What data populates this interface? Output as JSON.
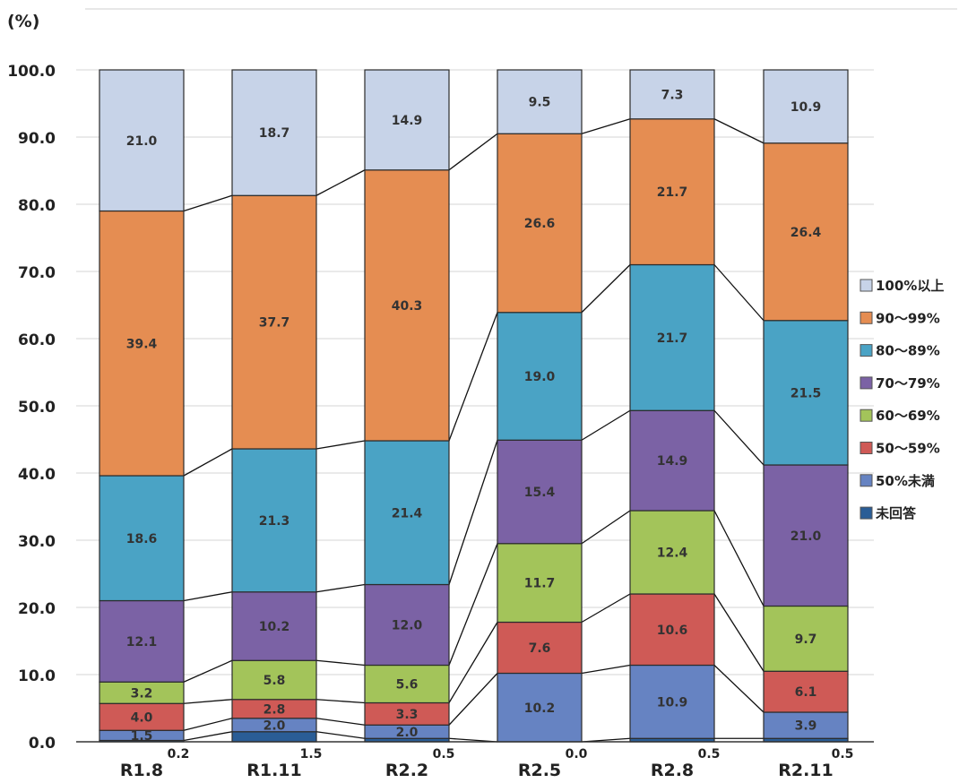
{
  "chart_data": {
    "type": "bar",
    "stacked": true,
    "unit_label": "(%)",
    "categories": [
      "R1.8",
      "R1.11",
      "R2.2",
      "R2.5",
      "R2.8",
      "R2.11"
    ],
    "ylim": [
      0,
      100
    ],
    "yticks": [
      "0.0",
      "10.0",
      "20.0",
      "30.0",
      "40.0",
      "50.0",
      "60.0",
      "70.0",
      "80.0",
      "90.0",
      "100.0"
    ],
    "grid": true,
    "legend_position": "right",
    "series": [
      {
        "name": "未回答",
        "color": "#2a5d96",
        "values": [
          0.2,
          1.5,
          0.5,
          0.0,
          0.5,
          0.5
        ]
      },
      {
        "name": "50%未満",
        "color": "#6683c2",
        "values": [
          1.5,
          2.0,
          2.0,
          10.2,
          10.9,
          3.9
        ]
      },
      {
        "name": "50～59%",
        "color": "#cf5a56",
        "values": [
          4.0,
          2.8,
          3.3,
          7.6,
          10.6,
          6.1
        ]
      },
      {
        "name": "60～69%",
        "color": "#a3c45a",
        "values": [
          3.2,
          5.8,
          5.6,
          11.7,
          12.4,
          9.7
        ]
      },
      {
        "name": "70～79%",
        "color": "#7b62a5",
        "values": [
          12.1,
          10.2,
          12.0,
          15.4,
          14.9,
          21.0
        ]
      },
      {
        "name": "80～89%",
        "color": "#4aa3c5",
        "values": [
          18.6,
          21.3,
          21.4,
          19.0,
          21.7,
          21.5
        ]
      },
      {
        "name": "90～99%",
        "color": "#e58d52",
        "values": [
          39.4,
          37.7,
          40.3,
          26.6,
          21.7,
          26.4
        ]
      },
      {
        "name": "100%以上",
        "color": "#c7d3e8",
        "values": [
          21.0,
          18.7,
          14.9,
          9.5,
          7.3,
          10.9
        ]
      }
    ]
  }
}
